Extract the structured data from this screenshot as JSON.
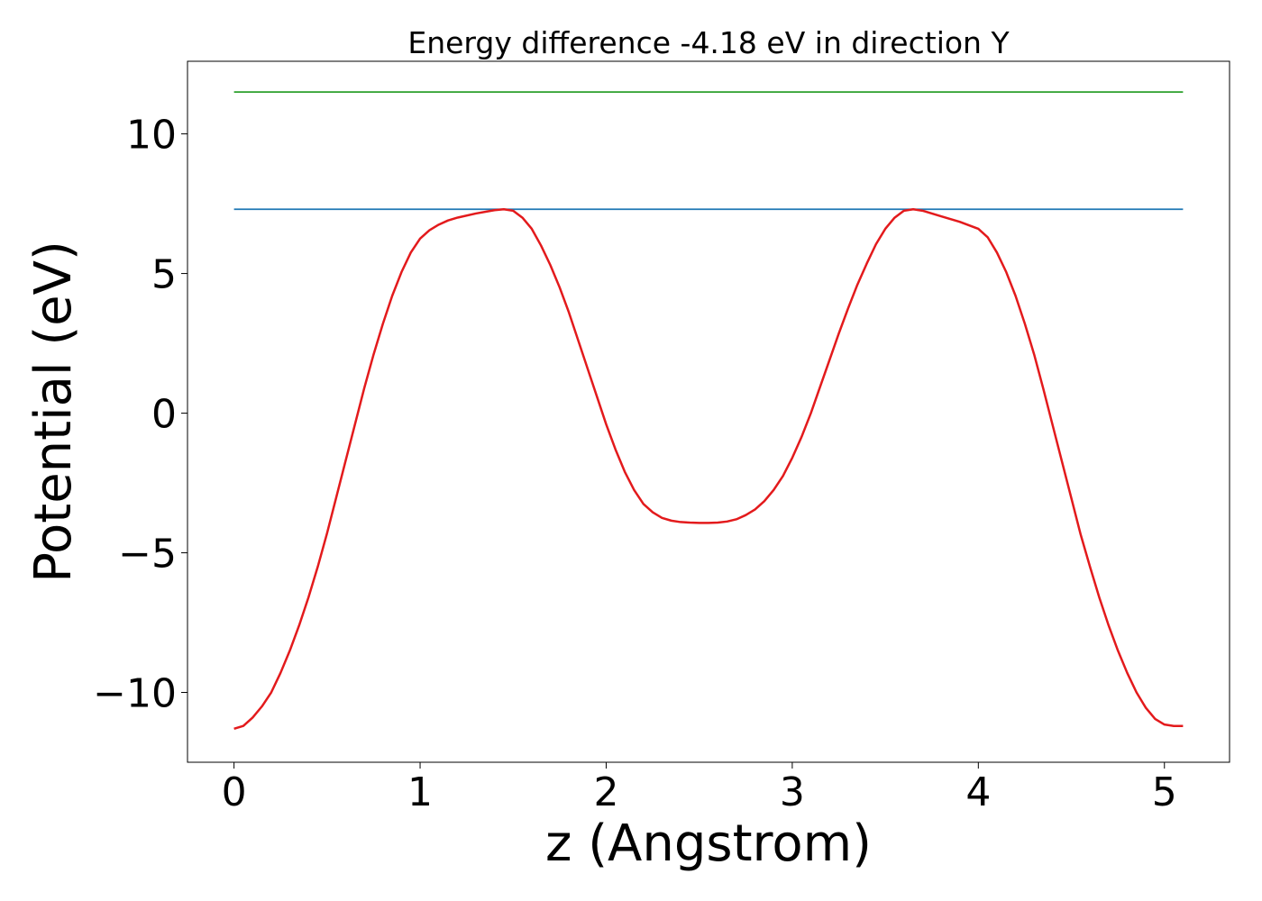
{
  "chart_data": {
    "type": "line",
    "title": "Energy difference -4.18 eV in direction Y",
    "xlabel": "z (Angstrom)",
    "ylabel": "Potential (eV)",
    "xlim": [
      -0.25,
      5.35
    ],
    "ylim": [
      -12.5,
      12.6
    ],
    "xticks": [
      0,
      1,
      2,
      3,
      4,
      5
    ],
    "xtick_labels": [
      "0",
      "1",
      "2",
      "3",
      "4",
      "5"
    ],
    "yticks": [
      -10,
      -5,
      0,
      5,
      10
    ],
    "ytick_labels": [
      "−10",
      "−5",
      "0",
      "5",
      "10"
    ],
    "grid": false,
    "legend": "none",
    "series": [
      {
        "color": "#1f77b4",
        "x": [
          0,
          5.1
        ],
        "y": [
          7.3,
          7.3
        ]
      },
      {
        "color": "#2ca02c",
        "x": [
          0,
          5.1
        ],
        "y": [
          11.5,
          11.5
        ]
      },
      {
        "color": "#e31a1c",
        "x": [
          0,
          0.05,
          0.1,
          0.15,
          0.2,
          0.25,
          0.3,
          0.35,
          0.4,
          0.45,
          0.5,
          0.55,
          0.6,
          0.65,
          0.7,
          0.75,
          0.8,
          0.85,
          0.9,
          0.95,
          1.0,
          1.05,
          1.1,
          1.15,
          1.2,
          1.3,
          1.4,
          1.45,
          1.5,
          1.55,
          1.6,
          1.65,
          1.7,
          1.75,
          1.8,
          1.85,
          1.9,
          1.95,
          2.0,
          2.05,
          2.1,
          2.15,
          2.2,
          2.25,
          2.3,
          2.35,
          2.4,
          2.45,
          2.5,
          2.55,
          2.6,
          2.65,
          2.7,
          2.75,
          2.8,
          2.85,
          2.9,
          2.95,
          3.0,
          3.05,
          3.1,
          3.15,
          3.2,
          3.25,
          3.3,
          3.35,
          3.4,
          3.45,
          3.5,
          3.55,
          3.6,
          3.65,
          3.7,
          3.75,
          3.8,
          3.9,
          4.0,
          4.05,
          4.1,
          4.15,
          4.2,
          4.25,
          4.3,
          4.35,
          4.4,
          4.45,
          4.5,
          4.55,
          4.6,
          4.65,
          4.7,
          4.75,
          4.8,
          4.85,
          4.9,
          4.95,
          5.0,
          5.05,
          5.1
        ],
        "y": [
          -11.3,
          -11.2,
          -10.9,
          -10.5,
          -10.0,
          -9.3,
          -8.5,
          -7.6,
          -6.6,
          -5.5,
          -4.3,
          -3.0,
          -1.7,
          -0.4,
          0.9,
          2.1,
          3.2,
          4.2,
          5.05,
          5.75,
          6.25,
          6.55,
          6.75,
          6.9,
          7.0,
          7.15,
          7.27,
          7.3,
          7.25,
          7.0,
          6.6,
          6.0,
          5.3,
          4.5,
          3.6,
          2.6,
          1.6,
          0.6,
          -0.4,
          -1.3,
          -2.1,
          -2.75,
          -3.25,
          -3.55,
          -3.75,
          -3.85,
          -3.9,
          -3.92,
          -3.93,
          -3.93,
          -3.92,
          -3.88,
          -3.8,
          -3.65,
          -3.45,
          -3.15,
          -2.75,
          -2.25,
          -1.6,
          -0.85,
          0.0,
          0.95,
          1.9,
          2.85,
          3.75,
          4.6,
          5.35,
          6.05,
          6.6,
          7.0,
          7.25,
          7.3,
          7.25,
          7.15,
          7.05,
          6.85,
          6.6,
          6.3,
          5.75,
          5.05,
          4.2,
          3.2,
          2.1,
          0.85,
          -0.45,
          -1.75,
          -3.05,
          -4.35,
          -5.5,
          -6.6,
          -7.6,
          -8.5,
          -9.3,
          -10.0,
          -10.55,
          -10.95,
          -11.15,
          -11.2,
          -11.2
        ]
      }
    ]
  }
}
